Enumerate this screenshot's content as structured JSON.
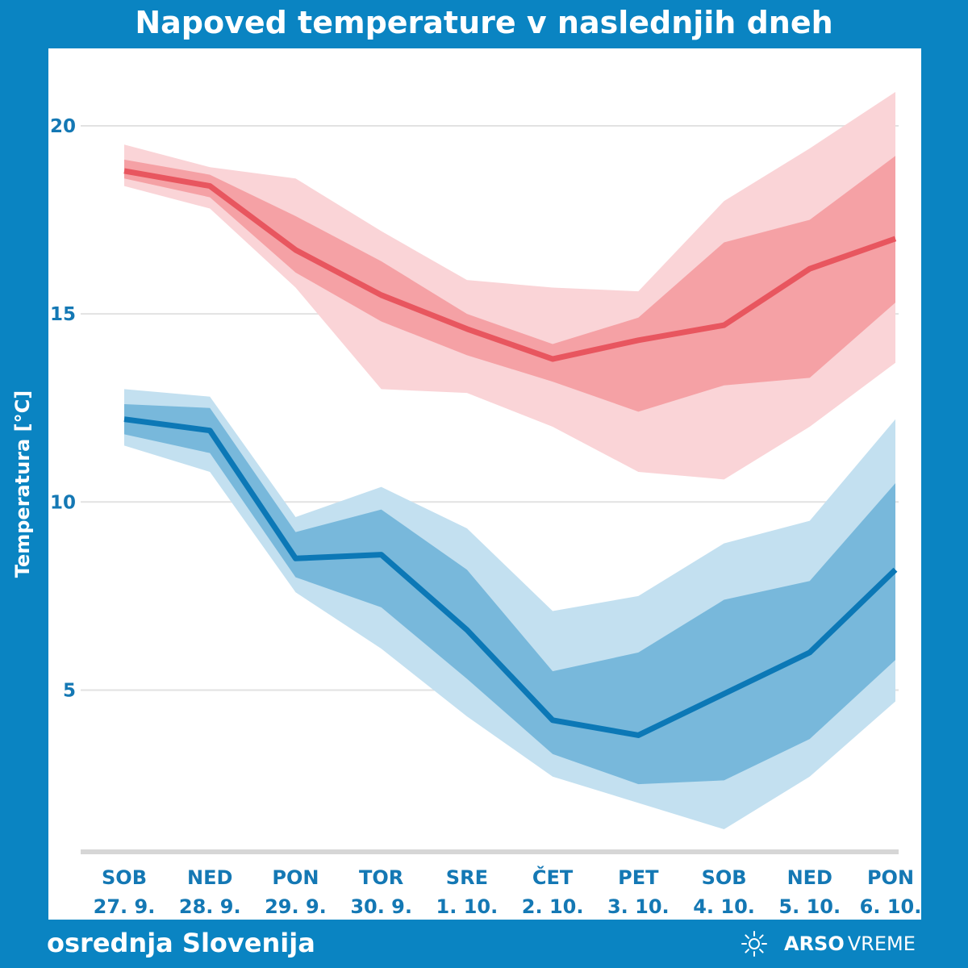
{
  "title": "Napoved temperature v naslednjih dneh",
  "region": "osrednja Slovenija",
  "brand": {
    "bold": "ARSO",
    "light": "VREME",
    "icon": "sun-icon"
  },
  "colors": {
    "background": "#0a84c2",
    "max_line": "#e8565f",
    "max_inner": "#f5a1a5",
    "max_outer": "#fad4d7",
    "min_line": "#0c78b6",
    "min_inner": "#78b8db",
    "min_outer": "#c3e0f0"
  },
  "chart_data": {
    "type": "area",
    "title": "Napoved temperature v naslednjih dneh",
    "xlabel": "",
    "ylabel": "Temperatura [°C]",
    "ylim": [
      0.4,
      21.2
    ],
    "yticks": [
      5,
      10,
      15,
      20
    ],
    "grid": true,
    "categories": [
      {
        "day": "SOB",
        "date": "27. 9."
      },
      {
        "day": "NED",
        "date": "28. 9."
      },
      {
        "day": "PON",
        "date": "29. 9."
      },
      {
        "day": "TOR",
        "date": "30. 9."
      },
      {
        "day": "SRE",
        "date": "1. 10."
      },
      {
        "day": "ČET",
        "date": "2. 10."
      },
      {
        "day": "PET",
        "date": "3. 10."
      },
      {
        "day": "SOB",
        "date": "4. 10."
      },
      {
        "day": "NED",
        "date": "5. 10."
      },
      {
        "day": "PON",
        "date": "6. 10."
      }
    ],
    "series": [
      {
        "key": "max",
        "median": [
          18.8,
          18.4,
          16.7,
          15.5,
          14.6,
          13.8,
          14.3,
          14.7,
          16.2,
          17.0
        ],
        "inner_upper": [
          19.1,
          18.7,
          17.6,
          16.4,
          15.0,
          14.2,
          14.9,
          16.9,
          17.5,
          19.2
        ],
        "inner_lower": [
          18.6,
          18.1,
          16.1,
          14.8,
          13.9,
          13.2,
          12.4,
          13.1,
          13.3,
          15.3
        ],
        "outer_upper": [
          19.5,
          18.9,
          18.6,
          17.2,
          15.9,
          15.7,
          15.6,
          18.0,
          19.4,
          20.9
        ],
        "outer_lower": [
          18.4,
          17.8,
          15.7,
          13.0,
          12.9,
          12.0,
          10.8,
          10.6,
          12.0,
          13.7
        ]
      },
      {
        "key": "min",
        "median": [
          12.2,
          11.9,
          8.5,
          8.6,
          6.6,
          4.2,
          3.8,
          4.9,
          6.0,
          8.2
        ],
        "inner_upper": [
          12.6,
          12.5,
          9.2,
          9.8,
          8.2,
          5.5,
          6.0,
          7.4,
          7.9,
          10.5
        ],
        "inner_lower": [
          11.8,
          11.3,
          8.0,
          7.2,
          5.3,
          3.3,
          2.5,
          2.6,
          3.7,
          5.8
        ],
        "outer_upper": [
          13.0,
          12.8,
          9.6,
          10.4,
          9.3,
          7.1,
          7.5,
          8.9,
          9.5,
          12.2
        ],
        "outer_lower": [
          11.5,
          10.8,
          7.6,
          6.1,
          4.3,
          2.7,
          2.0,
          1.3,
          2.7,
          4.7
        ]
      }
    ]
  }
}
